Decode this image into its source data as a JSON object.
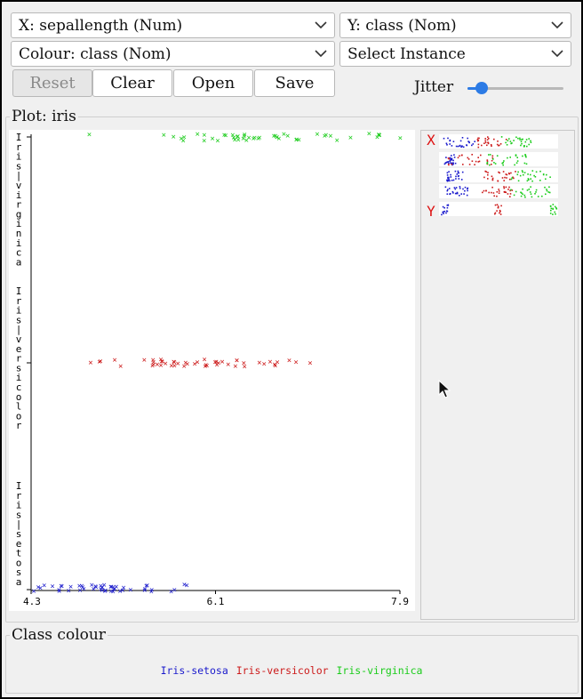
{
  "controls": {
    "x_axis": "X: sepallength (Num)",
    "y_axis": "Y: class (Nom)",
    "colour": "Colour: class (Nom)",
    "instance": "Select Instance"
  },
  "buttons": {
    "reset": "Reset",
    "clear": "Clear",
    "open": "Open",
    "save": "Save"
  },
  "jitter": {
    "label": "Jitter",
    "value": 0.15
  },
  "plot": {
    "title": "Plot: iris",
    "x_ticks": [
      "4.3",
      "6.1",
      "7.9"
    ]
  },
  "matrix": {
    "x_label": "X",
    "y_label": "Y"
  },
  "class_colour": {
    "title": "Class colour"
  },
  "colors": {
    "setosa": "#1a1acc",
    "versicolor": "#cc1a1a",
    "virginica": "#1acc1a"
  },
  "chart_data": {
    "type": "scatter",
    "title": "Plot: iris",
    "xlabel": "sepallength",
    "ylabel": "class",
    "xlim": [
      4.3,
      7.9
    ],
    "categories": [
      "Iris-setosa",
      "Iris-versicolor",
      "Iris-virginica"
    ],
    "series": [
      {
        "name": "Iris-setosa",
        "color": "#1a1acc",
        "x": [
          4.3,
          4.4,
          4.4,
          4.4,
          4.5,
          4.6,
          4.6,
          4.6,
          4.6,
          4.7,
          4.7,
          4.8,
          4.8,
          4.8,
          4.8,
          4.8,
          4.9,
          4.9,
          4.9,
          4.9,
          5.0,
          5.0,
          5.0,
          5.0,
          5.0,
          5.0,
          5.0,
          5.0,
          5.1,
          5.1,
          5.1,
          5.1,
          5.1,
          5.1,
          5.1,
          5.1,
          5.2,
          5.2,
          5.2,
          5.3,
          5.4,
          5.4,
          5.4,
          5.4,
          5.5,
          5.5,
          5.7,
          5.7,
          5.8,
          5.8
        ]
      },
      {
        "name": "Iris-versicolor",
        "color": "#cc1a1a",
        "x": [
          4.9,
          5.0,
          5.0,
          5.1,
          5.2,
          5.4,
          5.5,
          5.5,
          5.5,
          5.5,
          5.5,
          5.6,
          5.6,
          5.6,
          5.6,
          5.6,
          5.7,
          5.7,
          5.7,
          5.7,
          5.7,
          5.8,
          5.8,
          5.8,
          5.9,
          5.9,
          6.0,
          6.0,
          6.0,
          6.0,
          6.1,
          6.1,
          6.1,
          6.1,
          6.2,
          6.2,
          6.3,
          6.3,
          6.3,
          6.4,
          6.4,
          6.5,
          6.6,
          6.6,
          6.7,
          6.7,
          6.7,
          6.8,
          6.9,
          7.0
        ]
      },
      {
        "name": "Iris-virginica",
        "color": "#1acc1a",
        "x": [
          4.9,
          5.6,
          5.7,
          5.8,
          5.8,
          5.8,
          5.9,
          6.0,
          6.0,
          6.1,
          6.1,
          6.2,
          6.2,
          6.3,
          6.3,
          6.3,
          6.3,
          6.3,
          6.3,
          6.4,
          6.4,
          6.4,
          6.4,
          6.4,
          6.5,
          6.5,
          6.5,
          6.5,
          6.7,
          6.7,
          6.7,
          6.7,
          6.7,
          6.8,
          6.8,
          6.9,
          6.9,
          6.9,
          7.1,
          7.2,
          7.2,
          7.2,
          7.3,
          7.4,
          7.6,
          7.7,
          7.7,
          7.7,
          7.7,
          7.9
        ]
      }
    ]
  }
}
